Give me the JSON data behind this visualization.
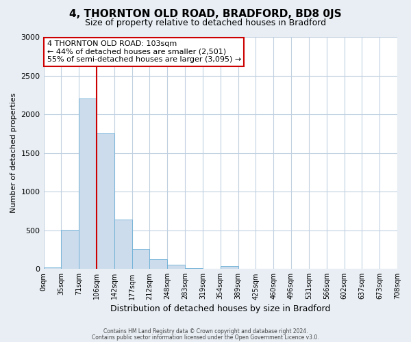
{
  "title": "4, THORNTON OLD ROAD, BRADFORD, BD8 0JS",
  "subtitle": "Size of property relative to detached houses in Bradford",
  "xlabel": "Distribution of detached houses by size in Bradford",
  "ylabel": "Number of detached properties",
  "bin_labels": [
    "0sqm",
    "35sqm",
    "71sqm",
    "106sqm",
    "142sqm",
    "177sqm",
    "212sqm",
    "248sqm",
    "283sqm",
    "319sqm",
    "354sqm",
    "389sqm",
    "425sqm",
    "460sqm",
    "496sqm",
    "531sqm",
    "566sqm",
    "602sqm",
    "637sqm",
    "673sqm",
    "708sqm"
  ],
  "bar_values": [
    20,
    510,
    2200,
    1750,
    635,
    260,
    130,
    60,
    15,
    0,
    35,
    5,
    0,
    0,
    0,
    0,
    0,
    0,
    0,
    0
  ],
  "bar_color": "#ccdcec",
  "bar_edge_color": "#6aaed6",
  "vline_color": "#cc0000",
  "ylim": [
    0,
    3000
  ],
  "yticks": [
    0,
    500,
    1000,
    1500,
    2000,
    2500,
    3000
  ],
  "annotation_title": "4 THORNTON OLD ROAD: 103sqm",
  "annotation_line1": "← 44% of detached houses are smaller (2,501)",
  "annotation_line2": "55% of semi-detached houses are larger (3,095) →",
  "annotation_box_color": "#ffffff",
  "annotation_border_color": "#cc0000",
  "footer1": "Contains HM Land Registry data © Crown copyright and database right 2024.",
  "footer2": "Contains public sector information licensed under the Open Government Licence v3.0.",
  "background_color": "#e8eef4",
  "plot_background_color": "#ffffff",
  "grid_color": "#c0d0e0",
  "title_fontsize": 11,
  "subtitle_fontsize": 9,
  "ylabel_fontsize": 8,
  "xlabel_fontsize": 9,
  "tick_fontsize": 7,
  "ytick_fontsize": 8,
  "ann_fontsize": 8,
  "footer_fontsize": 5.5
}
